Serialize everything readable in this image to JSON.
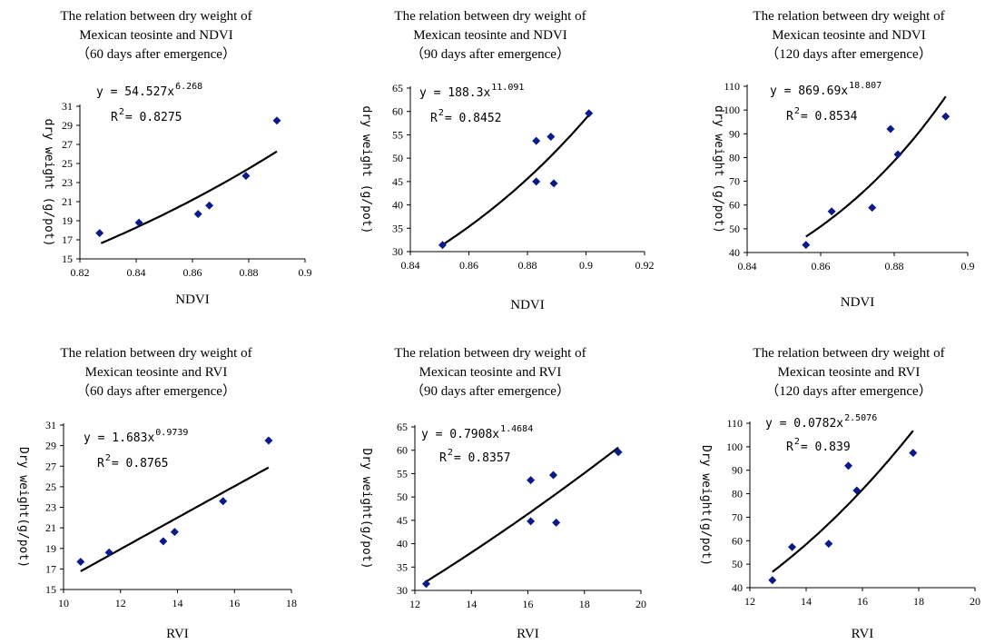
{
  "chart_data": [
    {
      "type": "scatter",
      "title": [
        "The relation between dry weight of",
        "Mexican teosinte and NDVI",
        "（60 days after emergence）"
      ],
      "xlabel": "NDVI",
      "ylabel": "dry weight (g/pot)",
      "xlim": [
        0.82,
        0.9
      ],
      "ylim": [
        15,
        31
      ],
      "xticks": [
        "0.82",
        "0.84",
        "0.86",
        "0.88",
        "0.9"
      ],
      "yticks": [
        "15",
        "17",
        "19",
        "21",
        "23",
        "25",
        "27",
        "29",
        "31"
      ],
      "points": [
        [
          0.827,
          17.7
        ],
        [
          0.841,
          18.8
        ],
        [
          0.862,
          19.7
        ],
        [
          0.866,
          20.6
        ],
        [
          0.879,
          23.7
        ],
        [
          0.89,
          29.5
        ]
      ],
      "trendline": {
        "kind": "power",
        "a": 54.527,
        "b": 6.268,
        "xrange": [
          0.8275,
          0.89
        ]
      },
      "equation": {
        "main": "y = 54.527x",
        "exp": "6.268",
        "r2_label": "R",
        "r2_exp": "2",
        "r2_value": " = 0.8275"
      }
    },
    {
      "type": "scatter",
      "title": [
        "The relation between dry weight of",
        "Mexican teosinte and NDVI",
        "（90 days after emergence）"
      ],
      "xlabel": "NDVI",
      "ylabel": "dry weight (g/pot)",
      "xlim": [
        0.84,
        0.92
      ],
      "ylim": [
        30,
        65
      ],
      "xticks": [
        "0.84",
        "0.86",
        "0.88",
        "0.9",
        "0.92"
      ],
      "yticks": [
        "30",
        "35",
        "40",
        "45",
        "50",
        "55",
        "60",
        "65"
      ],
      "points": [
        [
          0.851,
          31.4
        ],
        [
          0.883,
          45.0
        ],
        [
          0.883,
          53.7
        ],
        [
          0.888,
          54.6
        ],
        [
          0.889,
          44.6
        ],
        [
          0.901,
          59.6
        ]
      ],
      "trendline": {
        "kind": "power",
        "a": 188.3,
        "b": 11.091,
        "xrange": [
          0.851,
          0.901
        ]
      },
      "equation": {
        "main": "y = 188.3x",
        "exp": "11.091",
        "r2_label": "R",
        "r2_exp": "2",
        "r2_value": " = 0.8452"
      }
    },
    {
      "type": "scatter",
      "title": [
        "The relation between dry weight of",
        "Mexican teosinte and NDVI",
        "（120 days after emergence）"
      ],
      "xlabel": "NDVI",
      "ylabel": "dry weight (g/pot)",
      "xlim": [
        0.84,
        0.9
      ],
      "ylim": [
        40,
        110
      ],
      "xticks": [
        "0.84",
        "0.86",
        "0.88",
        "0.9"
      ],
      "yticks": [
        "40",
        "50",
        "60",
        "70",
        "80",
        "90",
        "100",
        "110"
      ],
      "points": [
        [
          0.856,
          43.2
        ],
        [
          0.863,
          57.3
        ],
        [
          0.874,
          58.9
        ],
        [
          0.879,
          92.0
        ],
        [
          0.881,
          81.3
        ],
        [
          0.894,
          97.3
        ]
      ],
      "trendline": {
        "kind": "power",
        "a": 869.69,
        "b": 18.807,
        "xrange": [
          0.856,
          0.894
        ]
      },
      "equation": {
        "main": "y = 869.69x",
        "exp": "18.807",
        "r2_label": "R",
        "r2_exp": "2",
        "r2_value": " = 0.8534"
      }
    },
    {
      "type": "scatter",
      "title": [
        "The relation between dry weight of",
        "Mexican teosinte and RVI",
        "（60 days after emergence）"
      ],
      "xlabel": "RVI",
      "ylabel": "Dry weight(g/pot)",
      "xlim": [
        10,
        18
      ],
      "ylim": [
        15,
        31
      ],
      "xticks": [
        "10",
        "12",
        "14",
        "16",
        "18"
      ],
      "yticks": [
        "15",
        "17",
        "19",
        "21",
        "23",
        "25",
        "27",
        "29",
        "31"
      ],
      "points": [
        [
          10.6,
          17.7
        ],
        [
          11.6,
          18.6
        ],
        [
          13.5,
          19.7
        ],
        [
          13.9,
          20.6
        ],
        [
          15.6,
          23.6
        ],
        [
          17.2,
          29.5
        ]
      ],
      "trendline": {
        "kind": "power",
        "a": 1.683,
        "b": 0.9739,
        "xrange": [
          10.6,
          17.2
        ]
      },
      "equation": {
        "main": "y = 1.683x",
        "exp": "0.9739",
        "r2_label": "R",
        "r2_exp": "2",
        "r2_value": " = 0.8765"
      }
    },
    {
      "type": "scatter",
      "title": [
        "The relation between dry weight of",
        "Mexican teosinte and RVI",
        "（90 days after emergence）"
      ],
      "xlabel": "RVI",
      "ylabel": "Dry weight(g/pot)",
      "xlim": [
        12,
        20
      ],
      "ylim": [
        30,
        65
      ],
      "xticks": [
        "12",
        "14",
        "16",
        "18",
        "20"
      ],
      "yticks": [
        "30",
        "35",
        "40",
        "45",
        "50",
        "55",
        "60",
        "65"
      ],
      "points": [
        [
          12.4,
          31.4
        ],
        [
          16.1,
          44.8
        ],
        [
          16.1,
          53.6
        ],
        [
          16.9,
          54.7
        ],
        [
          17.0,
          44.5
        ],
        [
          19.2,
          59.6
        ]
      ],
      "trendline": {
        "kind": "power",
        "a": 0.7908,
        "b": 1.4684,
        "xrange": [
          12.4,
          19.2
        ]
      },
      "equation": {
        "main": "y = 0.7908x",
        "exp": "1.4684",
        "r2_label": "R",
        "r2_exp": "2",
        "r2_value": " = 0.8357"
      }
    },
    {
      "type": "scatter",
      "title": [
        "The relation between dry weight of",
        "Mexican teosinte and RVI",
        "（120 days after emergence）"
      ],
      "xlabel": "RVI",
      "ylabel": "Dry weight(g/pot)",
      "xlim": [
        12,
        20
      ],
      "ylim": [
        40,
        110
      ],
      "xticks": [
        "12",
        "14",
        "16",
        "18",
        "20"
      ],
      "yticks": [
        "40",
        "50",
        "60",
        "70",
        "80",
        "90",
        "100",
        "110"
      ],
      "points": [
        [
          12.8,
          43.2
        ],
        [
          13.5,
          57.3
        ],
        [
          14.8,
          58.7
        ],
        [
          15.5,
          91.9
        ],
        [
          15.8,
          81.4
        ],
        [
          17.8,
          97.4
        ]
      ],
      "trendline": {
        "kind": "power",
        "a": 0.0782,
        "b": 2.5076,
        "xrange": [
          12.8,
          17.8
        ]
      },
      "equation": {
        "main": "y = 0.0782x",
        "exp": "2.5076",
        "r2_label": "R",
        "r2_exp": "2",
        "r2_value": " = 0.839"
      }
    }
  ]
}
